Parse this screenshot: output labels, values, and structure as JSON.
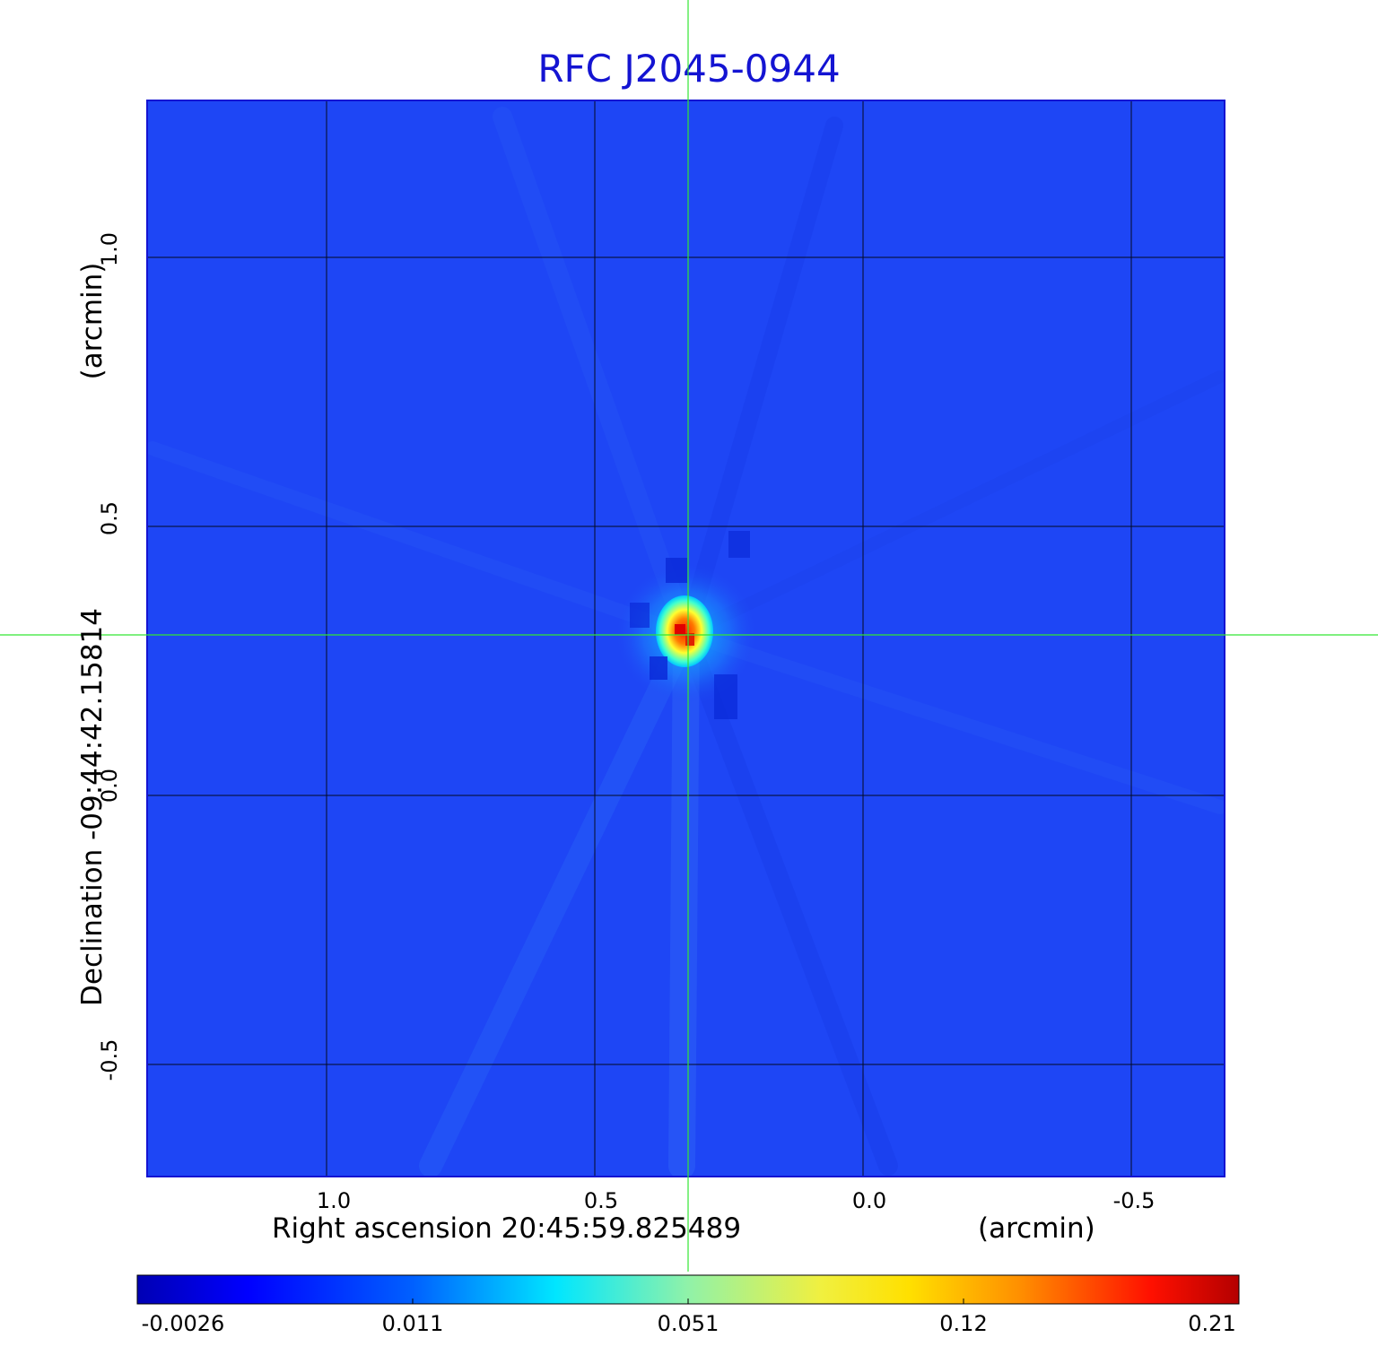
{
  "title": "RFC J2045-0944",
  "axes": {
    "x_ticks": [
      "1.0",
      "0.5",
      "0.0",
      "-0.5"
    ],
    "y_ticks": [
      "1.0",
      "0.5",
      "0.0",
      "-0.5"
    ],
    "xlabel": "Right ascension  20:45:59.825489",
    "x_unit": "(arcmin)",
    "ylabel": "Declination  -09:44:42.15814",
    "y_unit": "(arcmin)"
  },
  "colorbar": {
    "ticks": [
      "-0.0026",
      "0.011",
      "0.051",
      "0.12",
      "0.21"
    ]
  },
  "colors": {
    "background_field": "#1e46f5",
    "grid": "#000000",
    "crosshair": "#33e633",
    "title": "#1414d2"
  }
}
